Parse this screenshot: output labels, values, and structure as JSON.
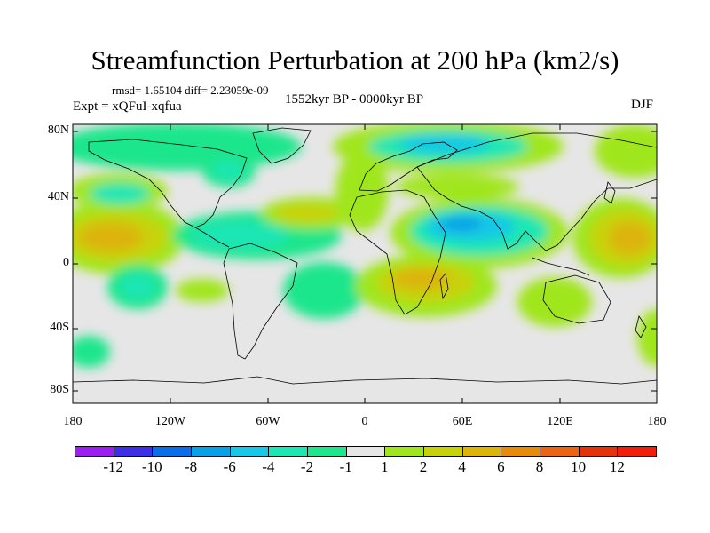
{
  "title": "Streamfunction Perturbation at 200 hPa (km2/s)",
  "stats": "rmsd= 1.65104 diff= 2.23059e-09",
  "experiment": "Expt = xQFuI-xqfua",
  "period": "1552kyr BP - 0000kyr BP",
  "season": "DJF",
  "axes": {
    "lat_labels": [
      "80N",
      "40N",
      "0",
      "40S",
      "80S"
    ],
    "lon_labels": [
      "180",
      "120W",
      "60W",
      "0",
      "60E",
      "120E",
      "180"
    ]
  },
  "colorbar": {
    "labels": [
      "-12",
      "-10",
      "-8",
      "-6",
      "-4",
      "-2",
      "-1",
      "1",
      "2",
      "4",
      "6",
      "8",
      "10",
      "12"
    ],
    "colors": [
      "#9b1ff0",
      "#3c2fe6",
      "#0a6ee6",
      "#0aa0e6",
      "#19c8e6",
      "#1ee6b4",
      "#1ee68c",
      "#e6e6e6",
      "#a0e61e",
      "#c8d20a",
      "#dcb40a",
      "#e68c0a",
      "#eb6414",
      "#e6320a",
      "#f01e0a"
    ]
  },
  "palette": {
    "neutral": "#e6e6e6",
    "pos1": "#a0e61e",
    "pos2": "#c8d20a",
    "pos3": "#dcb40a",
    "neg1": "#1ee68c",
    "neg2": "#1ee6b4",
    "neg3": "#19c8e6",
    "neg4": "#0aa0e6"
  }
}
